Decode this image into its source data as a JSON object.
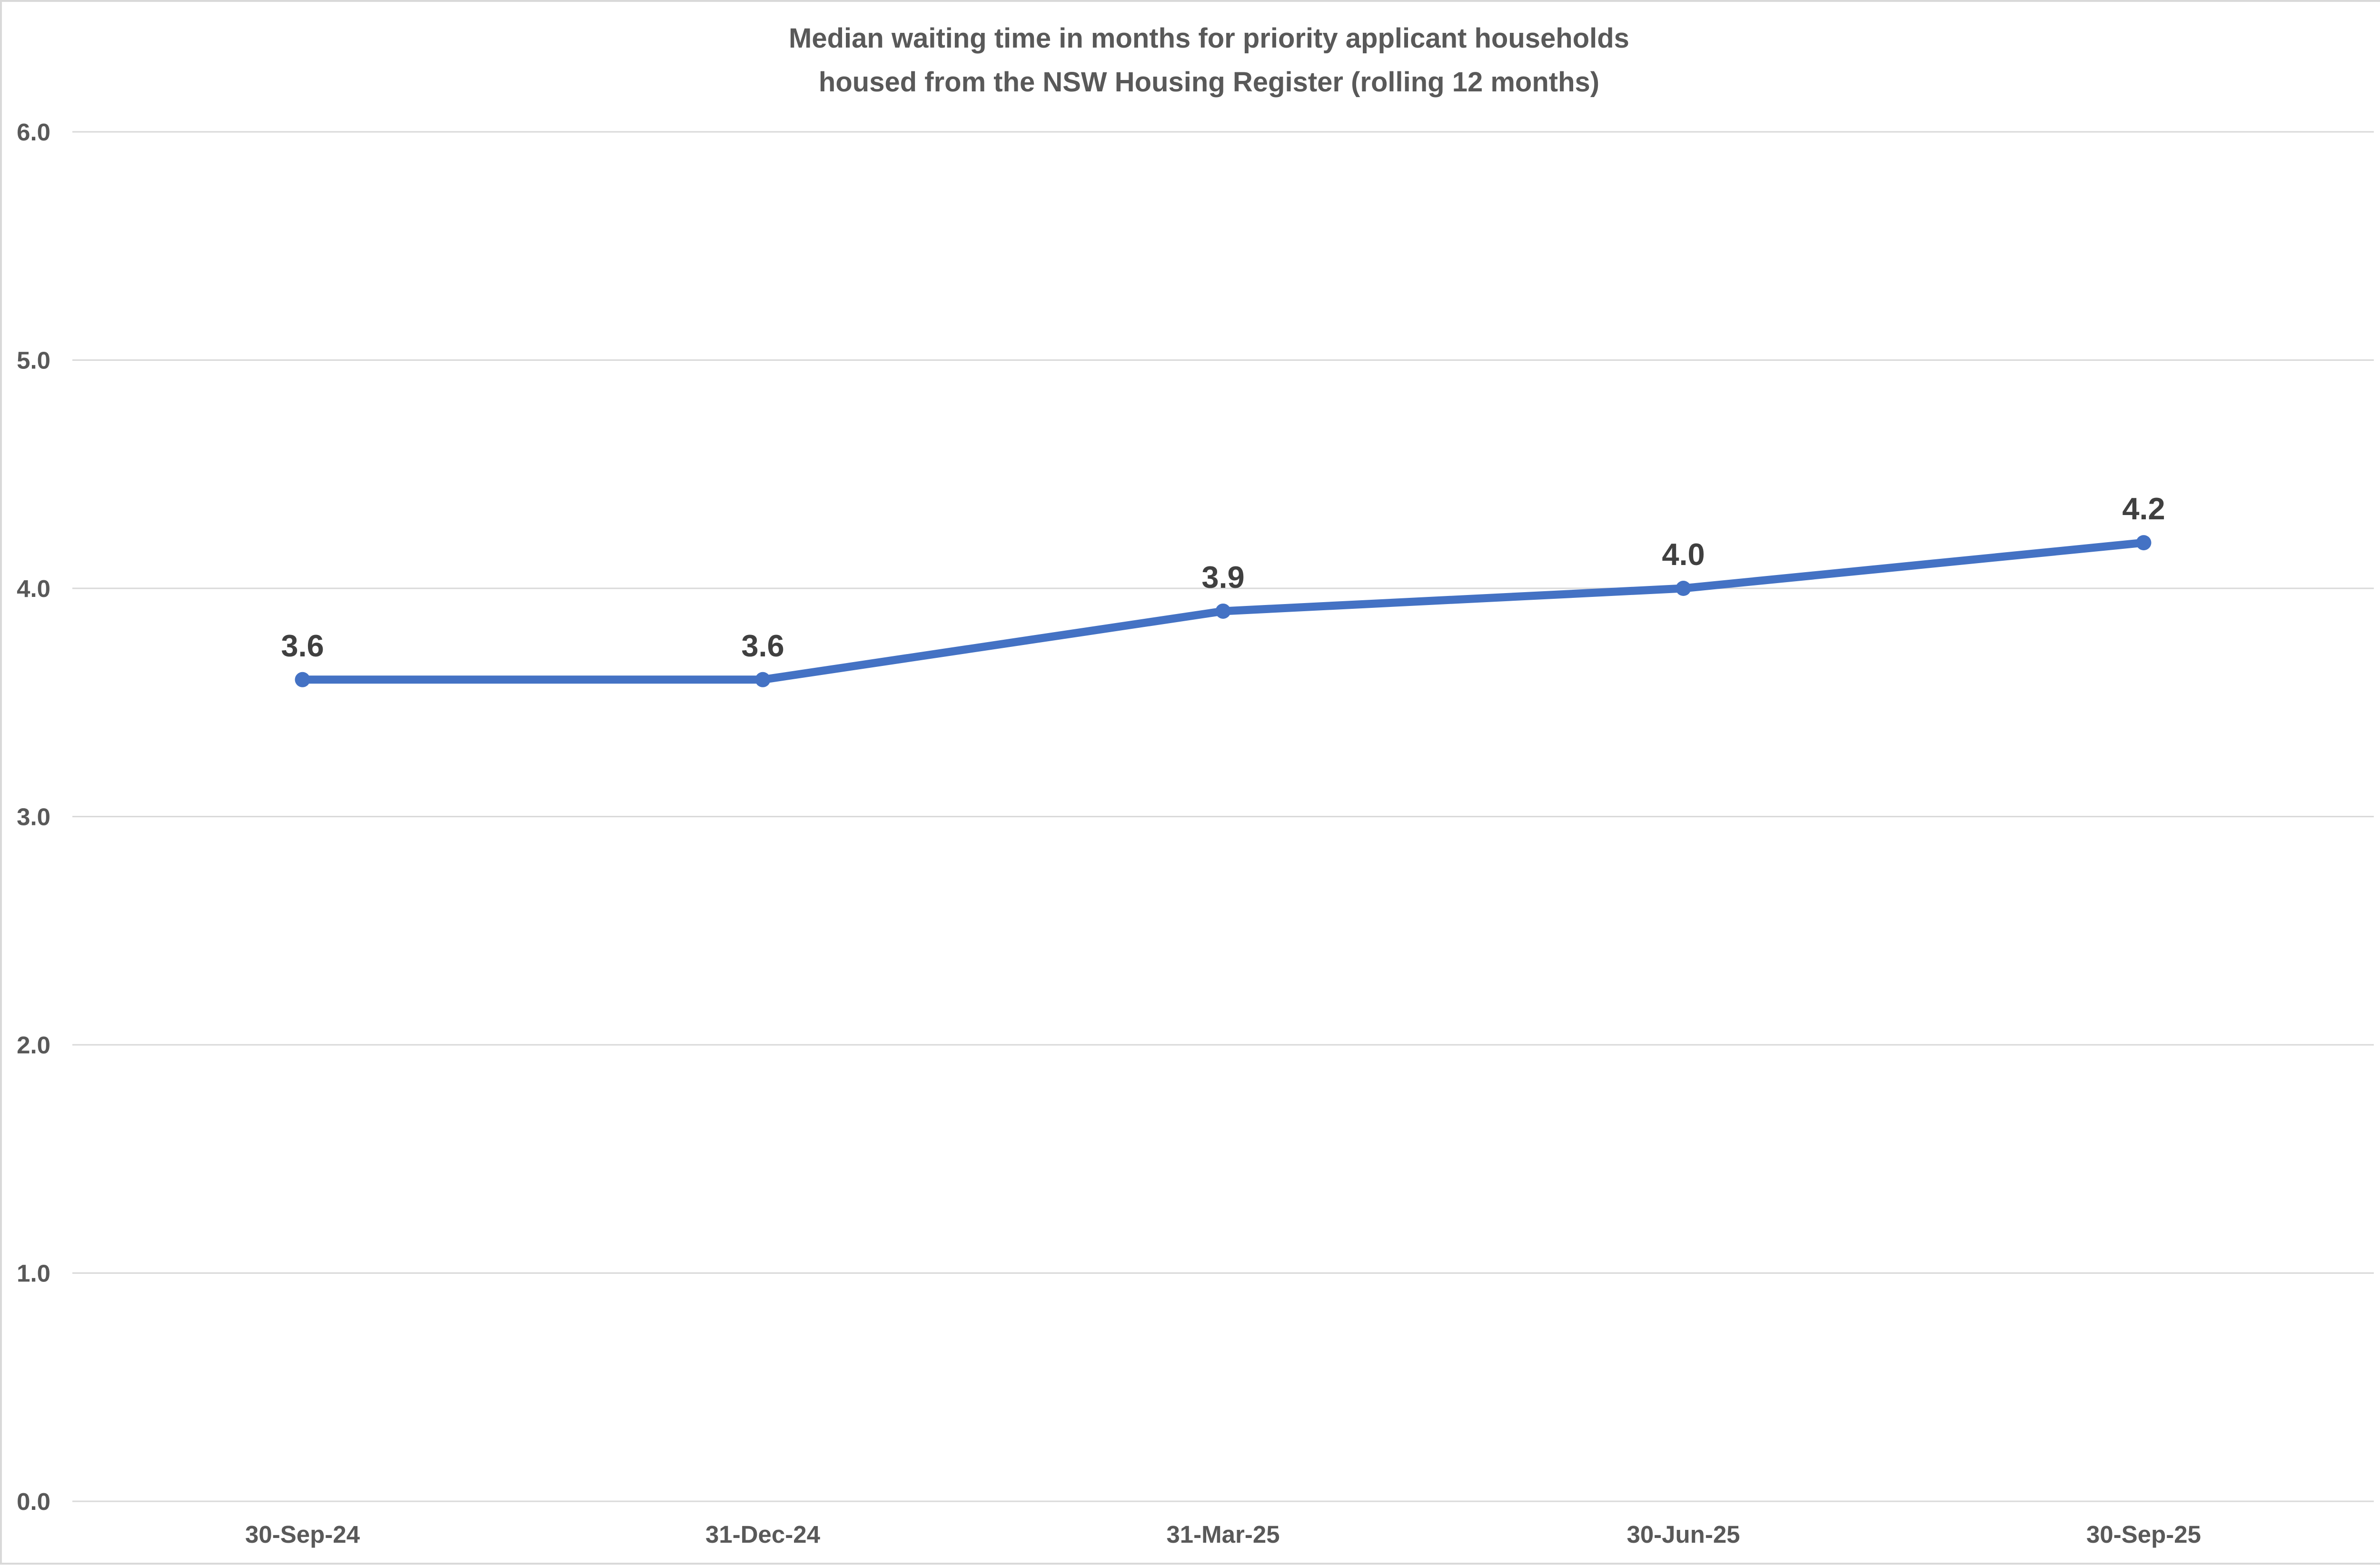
{
  "chart_data": {
    "type": "line",
    "title": "Median waiting time in months for priority applicant households housed from the NSW Housing Register (rolling 12 months)",
    "title_lines": [
      "Median waiting time in months for priority applicant households",
      "housed from the NSW Housing Register (rolling 12 months)"
    ],
    "categories": [
      "30-Sep-24",
      "31-Dec-24",
      "31-Mar-25",
      "30-Jun-25",
      "30-Sep-25"
    ],
    "series": [
      {
        "name": "Median waiting time in months",
        "values": [
          3.6,
          3.6,
          3.9,
          4.0,
          4.2
        ]
      }
    ],
    "data_labels": [
      "3.6",
      "3.6",
      "3.9",
      "4.0",
      "4.2"
    ],
    "xlabel": "",
    "ylabel": "",
    "ylim": [
      0.0,
      6.0
    ],
    "ytick_interval": 1.0,
    "ytick_labels": [
      "0.0",
      "1.0",
      "2.0",
      "3.0",
      "4.0",
      "5.0",
      "6.0"
    ],
    "grid": true,
    "legend": "none",
    "colors": {
      "line": "#4472C4",
      "marker": "#4472C4",
      "gridline": "#D9D9D9",
      "chart_border": "#D9D9D9",
      "title_text": "#595959",
      "axis_text": "#595959",
      "data_label_text": "#404040",
      "background": "#FFFFFF"
    }
  }
}
